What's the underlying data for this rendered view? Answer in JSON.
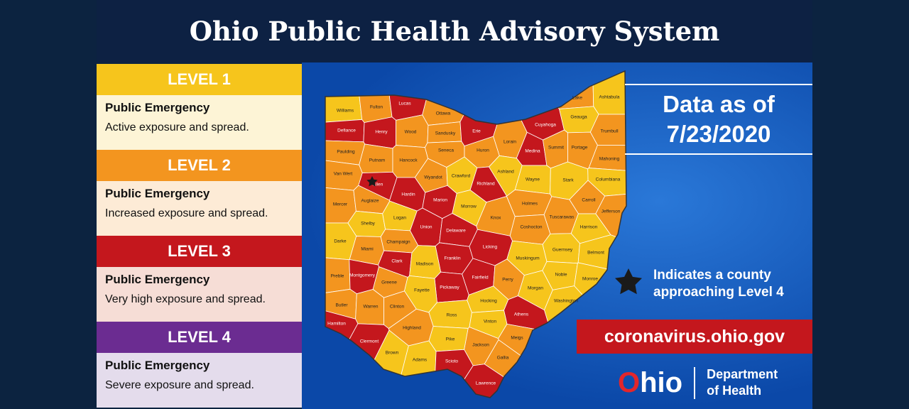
{
  "title": "Ohio Public Health Advisory System",
  "levels": [
    {
      "level": "LEVEL 1",
      "heading": "Public Emergency",
      "description": "Active exposure and spread.",
      "color": "#f6c51c",
      "bg": "#fdf4d6"
    },
    {
      "level": "LEVEL 2",
      "heading": "Public Emergency",
      "description": "Increased exposure and spread.",
      "color": "#f3951f",
      "bg": "#fdebd6"
    },
    {
      "level": "LEVEL 3",
      "heading": "Public Emergency",
      "description": "Very high exposure and spread.",
      "color": "#c4171d",
      "bg": "#f6ddd6"
    },
    {
      "level": "LEVEL 4",
      "heading": "Public Emergency",
      "description": "Severe exposure and spread.",
      "color": "#6b2c91",
      "bg": "#e4dcec"
    }
  ],
  "date_heading": "Data as of",
  "date": "7/23/2020",
  "star_note": "Indicates a county approaching Level 4",
  "website": "coronavirus.ohio.gov",
  "logo": {
    "wordmark": "Ohio",
    "department_line1": "Department",
    "department_line2": "of Health"
  },
  "counties": [
    {
      "name": "Williams",
      "level": 1
    },
    {
      "name": "Fulton",
      "level": 2
    },
    {
      "name": "Lucas",
      "level": 3
    },
    {
      "name": "Ottawa",
      "level": 2
    },
    {
      "name": "Defiance",
      "level": 3
    },
    {
      "name": "Henry",
      "level": 3
    },
    {
      "name": "Wood",
      "level": 2
    },
    {
      "name": "Sandusky",
      "level": 2
    },
    {
      "name": "Erie",
      "level": 3
    },
    {
      "name": "Lorain",
      "level": 2
    },
    {
      "name": "Cuyahoga",
      "level": 3
    },
    {
      "name": "Lake",
      "level": 2
    },
    {
      "name": "Ashtabula",
      "level": 1
    },
    {
      "name": "Geauga",
      "level": 1
    },
    {
      "name": "Trumbull",
      "level": 2
    },
    {
      "name": "Paulding",
      "level": 2
    },
    {
      "name": "Putnam",
      "level": 2
    },
    {
      "name": "Hancock",
      "level": 2
    },
    {
      "name": "Seneca",
      "level": 2
    },
    {
      "name": "Huron",
      "level": 2
    },
    {
      "name": "Medina",
      "level": 3
    },
    {
      "name": "Summit",
      "level": 2
    },
    {
      "name": "Portage",
      "level": 2
    },
    {
      "name": "Mahoning",
      "level": 2
    },
    {
      "name": "Van Wert",
      "level": 2
    },
    {
      "name": "Allen",
      "level": 3,
      "approaching_level4": true
    },
    {
      "name": "Wyandot",
      "level": 2
    },
    {
      "name": "Crawford",
      "level": 1
    },
    {
      "name": "Richland",
      "level": 3
    },
    {
      "name": "Ashland",
      "level": 1
    },
    {
      "name": "Wayne",
      "level": 1
    },
    {
      "name": "Stark",
      "level": 1
    },
    {
      "name": "Columbiana",
      "level": 1
    },
    {
      "name": "Mercer",
      "level": 2
    },
    {
      "name": "Auglaize",
      "level": 2
    },
    {
      "name": "Hardin",
      "level": 3
    },
    {
      "name": "Marion",
      "level": 3
    },
    {
      "name": "Morrow",
      "level": 1
    },
    {
      "name": "Knox",
      "level": 2
    },
    {
      "name": "Holmes",
      "level": 2
    },
    {
      "name": "Carroll",
      "level": 2
    },
    {
      "name": "Tuscarawas",
      "level": 2
    },
    {
      "name": "Jefferson",
      "level": 2
    },
    {
      "name": "Shelby",
      "level": 1
    },
    {
      "name": "Logan",
      "level": 1
    },
    {
      "name": "Union",
      "level": 3
    },
    {
      "name": "Delaware",
      "level": 3
    },
    {
      "name": "Coshocton",
      "level": 2
    },
    {
      "name": "Harrison",
      "level": 1
    },
    {
      "name": "Darke",
      "level": 1
    },
    {
      "name": "Champaign",
      "level": 2
    },
    {
      "name": "Licking",
      "level": 3
    },
    {
      "name": "Miami",
      "level": 2
    },
    {
      "name": "Franklin",
      "level": 3
    },
    {
      "name": "Muskingum",
      "level": 1
    },
    {
      "name": "Guernsey",
      "level": 1
    },
    {
      "name": "Belmont",
      "level": 1
    },
    {
      "name": "Clark",
      "level": 3
    },
    {
      "name": "Madison",
      "level": 1
    },
    {
      "name": "Preble",
      "level": 2
    },
    {
      "name": "Montgomery",
      "level": 3
    },
    {
      "name": "Fairfield",
      "level": 3
    },
    {
      "name": "Perry",
      "level": 2
    },
    {
      "name": "Noble",
      "level": 1
    },
    {
      "name": "Monroe",
      "level": 1
    },
    {
      "name": "Greene",
      "level": 2
    },
    {
      "name": "Pickaway",
      "level": 3
    },
    {
      "name": "Fayette",
      "level": 1
    },
    {
      "name": "Morgan",
      "level": 1
    },
    {
      "name": "Washington",
      "level": 1
    },
    {
      "name": "Butler",
      "level": 2
    },
    {
      "name": "Warren",
      "level": 2
    },
    {
      "name": "Clinton",
      "level": 2
    },
    {
      "name": "Hocking",
      "level": 1
    },
    {
      "name": "Athens",
      "level": 3
    },
    {
      "name": "Ross",
      "level": 1
    },
    {
      "name": "Vinton",
      "level": 1
    },
    {
      "name": "Hamilton",
      "level": 3
    },
    {
      "name": "Highland",
      "level": 2
    },
    {
      "name": "Meigs",
      "level": 2
    },
    {
      "name": "Clermont",
      "level": 3
    },
    {
      "name": "Jackson",
      "level": 2
    },
    {
      "name": "Pike",
      "level": 1
    },
    {
      "name": "Gallia",
      "level": 2
    },
    {
      "name": "Brown",
      "level": 1
    },
    {
      "name": "Adams",
      "level": 1
    },
    {
      "name": "Scioto",
      "level": 3
    },
    {
      "name": "Lawrence",
      "level": 3
    }
  ]
}
